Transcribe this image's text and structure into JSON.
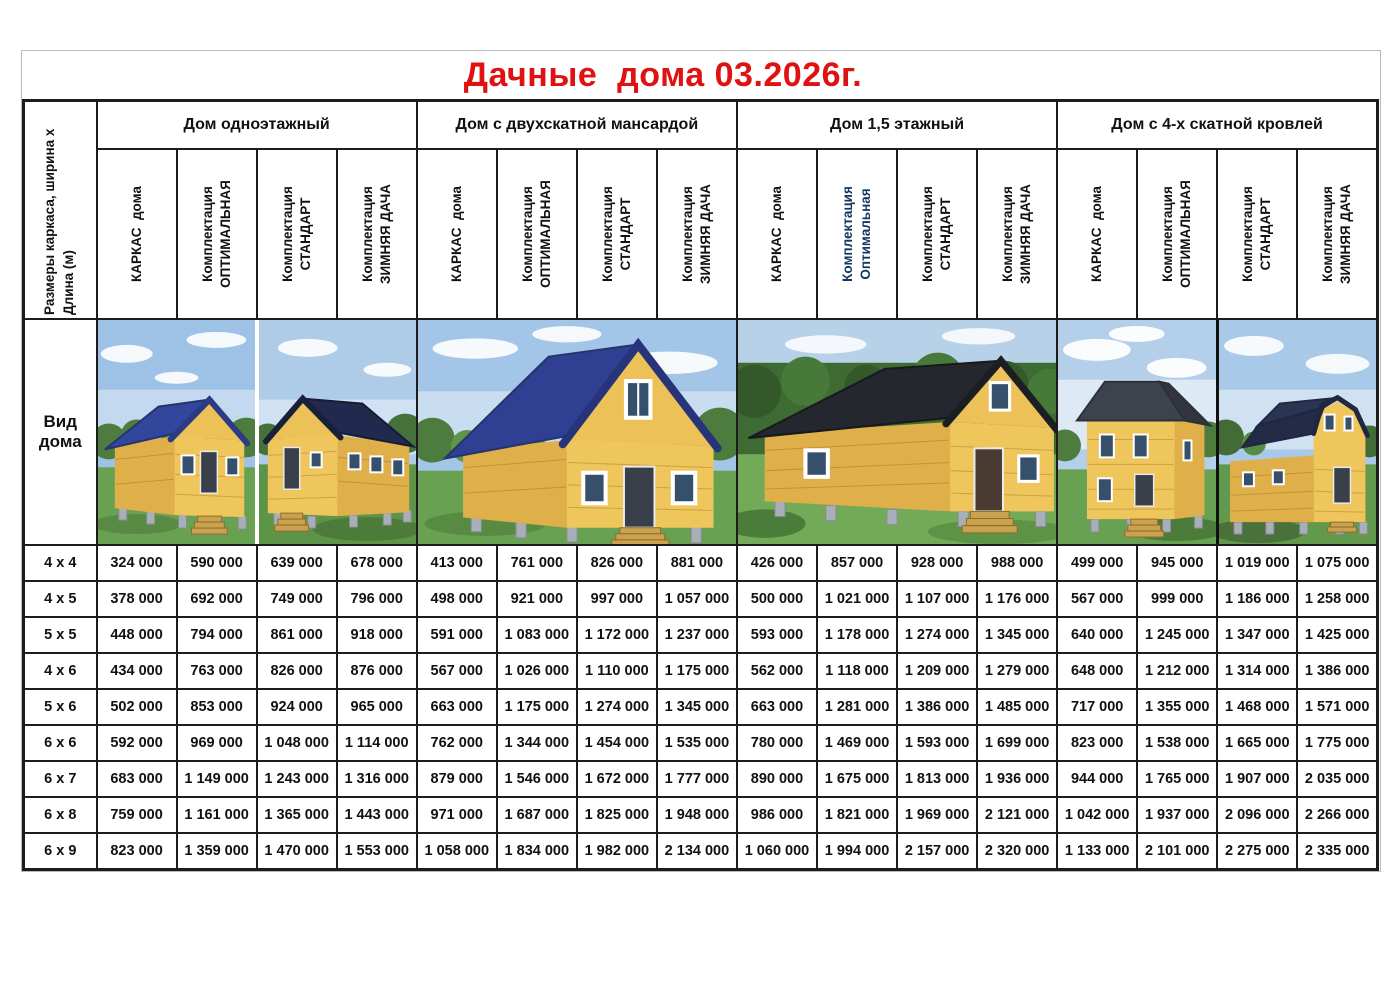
{
  "title": "Дачные  дома 03.2026г.",
  "colors": {
    "title_red": "#e01111",
    "header_gray": "#b6bcc8",
    "header_blue": "#2aaae2",
    "header_red": "#f23c34",
    "header_green": "#1fae4d",
    "optimal_navy_text": "#10365e",
    "table_border": "#1c1c1c"
  },
  "table": {
    "size_header": "Размеры каркаса, ширина х\nДлина (м)",
    "view_row_label": "Вид дома",
    "groups": [
      {
        "name": "Дом одноэтажный",
        "columns": [
          "КАРКАС  дома",
          "Комплектация\nОПТИМАЛЬНАЯ",
          "Комплектация\nСТАНДАРТ",
          "Комплектация\nЗИМНЯЯ ДАЧА"
        ],
        "photo_alt": [
          "Одноэтажный дом с синей двухскатной крышей, вид спереди",
          "Одноэтажный дом с тёмной крышей, вид сбоку"
        ]
      },
      {
        "name": "Дом с двухскатной мансардой",
        "columns": [
          "КАРКАС  дома",
          "Комплектация\nОПТИМАЛЬНАЯ",
          "Комплектация\nСТАНДАРТ",
          "Комплектация\nЗИМНЯЯ ДАЧА"
        ],
        "photo_alt": [
          "Дом с двухскатной мансардой и синей крышей"
        ]
      },
      {
        "name": "Дом 1,5 этажный",
        "columns": [
          "КАРКАС  дома",
          "Комплектация\nОптимальная",
          "Комплектация\nСТАНДАРТ",
          "Комплектация\nЗИМНЯЯ ДАЧА"
        ],
        "photo_alt": [
          "Дом 1,5 этажный с тёмной крышей"
        ]
      },
      {
        "name": "Дом с 4-х скатной кровлей",
        "columns": [
          "КАРКАС  дома",
          "Комплектация\nОПТИМАЛЬНАЯ",
          "Комплектация\nСТАНДАРТ",
          "Комплектация\nЗИМНЯЯ ДАЧА"
        ],
        "photo_alt": [
          "Двухэтажный дом с 4-х скатной кровлей",
          "Дом с ломаной мансардной крышей"
        ]
      }
    ],
    "rows": [
      {
        "size": "4 x 4",
        "prices": [
          "324 000",
          "590 000",
          "639 000",
          "678 000",
          "413 000",
          "761 000",
          "826 000",
          "881 000",
          "426 000",
          "857 000",
          "928 000",
          "988 000",
          "499 000",
          "945 000",
          "1 019 000",
          "1 075 000"
        ]
      },
      {
        "size": "4 x 5",
        "prices": [
          "378 000",
          "692 000",
          "749 000",
          "796 000",
          "498 000",
          "921 000",
          "997 000",
          "1 057 000",
          "500 000",
          "1 021 000",
          "1 107 000",
          "1 176 000",
          "567 000",
          "999 000",
          "1 186 000",
          "1 258 000"
        ]
      },
      {
        "size": "5 x 5",
        "prices": [
          "448 000",
          "794 000",
          "861 000",
          "918 000",
          "591 000",
          "1 083 000",
          "1 172 000",
          "1 237 000",
          "593 000",
          "1 178 000",
          "1 274 000",
          "1 345 000",
          "640 000",
          "1 245 000",
          "1 347 000",
          "1 425 000"
        ]
      },
      {
        "size": "4 x 6",
        "prices": [
          "434 000",
          "763 000",
          "826 000",
          "876 000",
          "567 000",
          "1 026 000",
          "1 110 000",
          "1 175 000",
          "562 000",
          "1 118 000",
          "1 209 000",
          "1 279 000",
          "648 000",
          "1 212 000",
          "1 314 000",
          "1 386 000"
        ]
      },
      {
        "size": "5 x 6",
        "prices": [
          "502 000",
          "853 000",
          "924 000",
          "965 000",
          "663 000",
          "1 175 000",
          "1 274 000",
          "1 345 000",
          "663 000",
          "1 281 000",
          "1 386 000",
          "1 485 000",
          "717 000",
          "1 355 000",
          "1 468 000",
          "1 571 000"
        ]
      },
      {
        "size": "6 x 6",
        "prices": [
          "592 000",
          "969 000",
          "1 048 000",
          "1 114 000",
          "762 000",
          "1 344 000",
          "1 454 000",
          "1 535 000",
          "780 000",
          "1 469 000",
          "1 593 000",
          "1 699 000",
          "823 000",
          "1 538 000",
          "1 665 000",
          "1 775 000"
        ]
      },
      {
        "size": "6 x 7",
        "prices": [
          "683 000",
          "1 149 000",
          "1 243 000",
          "1 316 000",
          "879 000",
          "1 546 000",
          "1 672 000",
          "1 777 000",
          "890 000",
          "1 675 000",
          "1 813 000",
          "1 936 000",
          "944 000",
          "1 765 000",
          "1 907 000",
          "2 035 000"
        ]
      },
      {
        "size": "6 x 8",
        "prices": [
          "759 000",
          "1 161 000",
          "1 365 000",
          "1 443 000",
          "971 000",
          "1 687 000",
          "1 825 000",
          "1 948 000",
          "986 000",
          "1 821 000",
          "1 969 000",
          "2 121 000",
          "1 042 000",
          "1 937 000",
          "2 096 000",
          "2 266 000"
        ]
      },
      {
        "size": "6 x 9",
        "prices": [
          "823 000",
          "1 359 000",
          "1 470 000",
          "1 553 000",
          "1 058 000",
          "1 834 000",
          "1 982 000",
          "2 134 000",
          "1 060 000",
          "1 994 000",
          "2 157 000",
          "2 320 000",
          "1 133 000",
          "2 101 000",
          "2 275 000",
          "2 335 000"
        ]
      }
    ]
  }
}
